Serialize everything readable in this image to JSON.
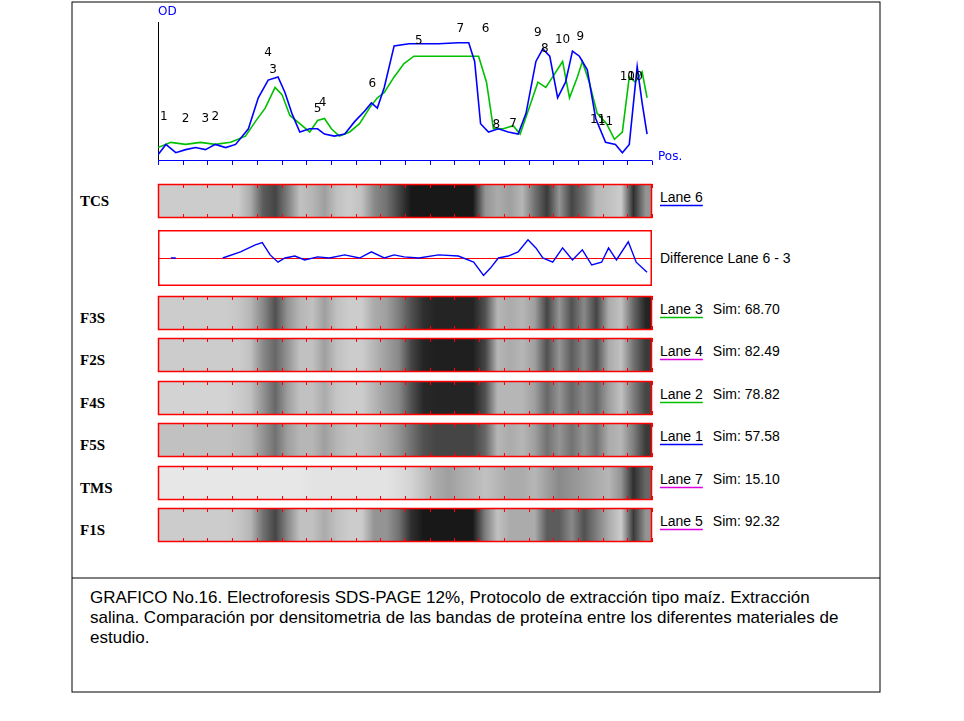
{
  "chart_data": [
    {
      "type": "line",
      "y_label": "OD",
      "x_label": "Pos.",
      "xlim": [
        0,
        100
      ],
      "ylim": [
        0,
        100
      ],
      "xticks": [
        0,
        5,
        10,
        15,
        20,
        25,
        30,
        35,
        40,
        45,
        50,
        55,
        60,
        65,
        70,
        75,
        80,
        85,
        90,
        95,
        100
      ],
      "tick_labels": false,
      "grid": false,
      "series": [
        {
          "name": "Lane 6",
          "color": "#0000ff",
          "x": [
            0,
            1.6,
            3.6,
            5.6,
            7.6,
            9.6,
            11.6,
            13.7,
            15.7,
            18.3,
            20.3,
            22.3,
            24.3,
            25.7,
            27.1,
            28.7,
            30.7,
            32.3,
            33.7,
            35.7,
            37.8,
            39.8,
            41.8,
            43.2,
            44.4,
            45.8,
            47.8,
            50.8,
            56.8,
            60.8,
            62.9,
            64.1,
            65.3,
            66.9,
            68.9,
            70.9,
            72.9,
            74.5,
            76.5,
            77.9,
            79.3,
            80.9,
            82.5,
            83.9,
            85.3,
            86.9,
            88.6,
            90.6,
            92.6,
            94.0,
            95.4,
            97.0,
            98.0,
            99.0
          ],
          "values": [
            3.8,
            11.3,
            5.3,
            7.5,
            9.0,
            7.5,
            11.3,
            9.0,
            11.3,
            22.6,
            45.1,
            57.9,
            60.2,
            48.9,
            33.8,
            20.3,
            22.6,
            22.6,
            18.8,
            17.3,
            18.8,
            27.8,
            35.3,
            41.4,
            37.6,
            52.6,
            82.7,
            84.2,
            84.2,
            85.0,
            85.0,
            71.4,
            26.3,
            20.3,
            22.6,
            20.3,
            18.8,
            33.8,
            71.4,
            80.5,
            75.2,
            45.1,
            56.4,
            78.9,
            75.2,
            65.4,
            30.1,
            12.8,
            11.3,
            5.3,
            11.3,
            67.7,
            41.4,
            18.8
          ],
          "peak_labels": [
            {
              "x": 1.2,
              "y": 26.3,
              "text": "1"
            },
            {
              "x": 5.6,
              "y": 24.8,
              "text": "2"
            },
            {
              "x": 9.6,
              "y": 24.8,
              "text": "3"
            },
            {
              "x": 22.3,
              "y": 72.9,
              "text": "4"
            },
            {
              "x": 32.3,
              "y": 32.3,
              "text": "5"
            },
            {
              "x": 43.4,
              "y": 50.4,
              "text": "6"
            },
            {
              "x": 52.8,
              "y": 81.2,
              "text": "5"
            },
            {
              "x": 61.2,
              "y": 90.2,
              "text": "7"
            },
            {
              "x": 76.9,
              "y": 87.2,
              "text": "9"
            },
            {
              "x": 81.9,
              "y": 82.0,
              "text": "10"
            },
            {
              "x": 90.6,
              "y": 22.6,
              "text": "11"
            },
            {
              "x": 95.0,
              "y": 54.9,
              "text": "10"
            }
          ]
        },
        {
          "name": "Lane 3",
          "color": "#00c000",
          "x": [
            0,
            2.6,
            5.6,
            8.6,
            11.6,
            14.7,
            17.7,
            19.7,
            21.7,
            23.7,
            25.1,
            26.7,
            28.7,
            30.7,
            32.3,
            33.7,
            35.1,
            36.7,
            38.8,
            40.8,
            42.8,
            44.4,
            45.8,
            47.8,
            49.8,
            51.8,
            56.8,
            61.8,
            64.9,
            66.5,
            67.9,
            69.9,
            71.9,
            73.3,
            74.9,
            76.9,
            78.5,
            79.9,
            81.9,
            83.3,
            84.9,
            85.9,
            87.3,
            88.9,
            90.8,
            92.4,
            94.0,
            95.4,
            96.6,
            98.0,
            99.0
          ],
          "values": [
            9.0,
            12.8,
            11.3,
            12.8,
            11.3,
            12.8,
            17.3,
            27.8,
            37.6,
            52.6,
            47.4,
            32.3,
            26.3,
            20.3,
            28.6,
            30.1,
            22.6,
            17.3,
            20.3,
            26.3,
            37.6,
            45.1,
            48.9,
            60.2,
            69.9,
            75.2,
            75.2,
            75.2,
            75.2,
            56.4,
            22.6,
            22.6,
            24.8,
            18.8,
            35.3,
            56.4,
            52.6,
            60.2,
            71.4,
            45.1,
            60.2,
            71.4,
            56.4,
            33.8,
            26.3,
            15.0,
            20.3,
            60.2,
            56.4,
            63.9,
            45.1
          ],
          "peak_labels": [
            {
              "x": 11.6,
              "y": 26.3,
              "text": "2"
            },
            {
              "x": 23.3,
              "y": 60.2,
              "text": "3"
            },
            {
              "x": 33.3,
              "y": 36.1,
              "text": "4"
            },
            {
              "x": 66.3,
              "y": 90.2,
              "text": "6"
            },
            {
              "x": 68.5,
              "y": 20.3,
              "text": "8"
            },
            {
              "x": 71.9,
              "y": 21.1,
              "text": "7"
            },
            {
              "x": 78.3,
              "y": 75.2,
              "text": "8"
            },
            {
              "x": 85.5,
              "y": 84.2,
              "text": "9"
            },
            {
              "x": 89.0,
              "y": 24.1,
              "text": "11"
            },
            {
              "x": 96.6,
              "y": 54.9,
              "text": "10"
            }
          ]
        }
      ]
    },
    {
      "type": "line",
      "title": "Difference Lane 6 - 3",
      "xlim": [
        0,
        100
      ],
      "ylim": [
        -10,
        10
      ],
      "tick_labels": false,
      "grid": false,
      "reference_line": 0,
      "series": [
        {
          "color": "#0000ff",
          "x": [
            2.6,
            3.6,
            5.0,
            13.1,
            16.7,
            19.7,
            21.1,
            22.7,
            24.3,
            25.7,
            27.7,
            29.7,
            32.3,
            34.7,
            37.8,
            40.8,
            43.2,
            45.8,
            47.8,
            49.8,
            52.8,
            56.8,
            60.8,
            63.9,
            65.9,
            67.3,
            68.9,
            70.9,
            72.9,
            74.9,
            76.5,
            77.9,
            79.9,
            81.9,
            83.9,
            85.9,
            87.8,
            89.8,
            91.2,
            92.8,
            95.2,
            96.8,
            99.0
          ],
          "values": [
            0,
            0,
            null,
            0,
            2.2,
            4.7,
            5.5,
            1.1,
            -1.5,
            0,
            0.7,
            -0.7,
            0.4,
            0,
            1.1,
            0,
            2.2,
            0,
            1.1,
            0.4,
            0,
            1.1,
            0.7,
            -1.5,
            -6.2,
            -3.6,
            0,
            0.7,
            2.2,
            6.5,
            3.6,
            0,
            -1.5,
            3.6,
            -0.7,
            2.9,
            -2.5,
            -1.5,
            3.6,
            -0.7,
            5.8,
            -1.5,
            -5.1
          ]
        }
      ]
    }
  ],
  "lanes": {
    "sim_prefix": "Sim:",
    "positions": [
      1.25,
      3.75,
      6.25,
      8.75,
      11.25,
      13.75,
      16.25,
      18.75,
      21.25,
      23.75,
      26.25,
      28.75,
      31.25,
      33.75,
      36.25,
      38.75,
      41.25,
      43.75,
      46.25,
      48.75,
      51.25,
      53.75,
      56.25,
      58.75,
      61.25,
      63.75,
      66.25,
      68.75,
      71.25,
      73.75,
      76.25,
      78.75,
      81.25,
      83.75,
      86.25,
      88.75,
      91.25,
      93.75,
      96.25,
      98.75
    ],
    "items": [
      {
        "sample": "TCS",
        "lane": "Lane 6",
        "color": "#0000ff",
        "darkness": [
          15,
          15,
          15,
          15,
          15,
          15,
          15,
          30,
          65,
          75,
          50,
          20,
          25,
          35,
          20,
          15,
          20,
          45,
          55,
          75,
          95,
          95,
          95,
          95,
          95,
          95,
          40,
          30,
          35,
          25,
          55,
          80,
          40,
          75,
          55,
          25,
          20,
          15,
          85,
          40
        ]
      },
      {
        "sample": "F3S",
        "lane": "Lane 3",
        "color": "#00c000",
        "sim": 68.7,
        "darkness": [
          15,
          15,
          15,
          15,
          15,
          15,
          18,
          25,
          45,
          70,
          40,
          25,
          20,
          35,
          20,
          15,
          15,
          30,
          35,
          50,
          70,
          85,
          90,
          90,
          90,
          90,
          70,
          25,
          30,
          25,
          35,
          75,
          40,
          70,
          45,
          75,
          30,
          20,
          60,
          90
        ]
      },
      {
        "sample": "F2S",
        "lane": "Lane 4",
        "color": "#e000e0",
        "sim": 82.49,
        "darkness": [
          15,
          15,
          15,
          15,
          15,
          15,
          15,
          20,
          45,
          60,
          40,
          20,
          20,
          35,
          20,
          15,
          15,
          25,
          35,
          45,
          75,
          90,
          92,
          92,
          92,
          92,
          75,
          25,
          30,
          25,
          35,
          70,
          40,
          65,
          45,
          70,
          30,
          20,
          55,
          80
        ]
      },
      {
        "sample": "F4S",
        "lane": "Lane 2",
        "color": "#00c000",
        "sim": 78.82,
        "darkness": [
          12,
          12,
          12,
          12,
          12,
          12,
          15,
          20,
          40,
          60,
          35,
          20,
          20,
          30,
          18,
          15,
          15,
          25,
          35,
          45,
          70,
          88,
          90,
          90,
          90,
          90,
          70,
          25,
          25,
          25,
          35,
          60,
          40,
          60,
          45,
          60,
          35,
          20,
          50,
          75
        ]
      },
      {
        "sample": "F5S",
        "lane": "Lane 1",
        "color": "#0000ff",
        "sim": 57.58,
        "darkness": [
          20,
          20,
          20,
          20,
          20,
          20,
          22,
          25,
          40,
          55,
          35,
          25,
          25,
          35,
          25,
          20,
          20,
          25,
          30,
          40,
          55,
          70,
          75,
          75,
          75,
          75,
          60,
          25,
          30,
          25,
          35,
          55,
          40,
          55,
          40,
          55,
          30,
          25,
          50,
          80
        ]
      },
      {
        "sample": "TMS",
        "lane": "Lane 7",
        "color": "#e000e0",
        "sim": 15.1,
        "darkness": [
          3,
          3,
          3,
          3,
          3,
          3,
          3,
          3,
          3,
          3,
          3,
          3,
          5,
          5,
          5,
          5,
          5,
          5,
          5,
          8,
          12,
          20,
          30,
          35,
          30,
          25,
          20,
          25,
          30,
          30,
          25,
          35,
          45,
          40,
          35,
          30,
          25,
          40,
          85,
          60
        ]
      },
      {
        "sample": "F1S",
        "lane": "Lane 5",
        "color": "#e000e0",
        "sim": 92.32,
        "darkness": [
          15,
          15,
          15,
          15,
          15,
          15,
          18,
          25,
          55,
          75,
          45,
          20,
          20,
          30,
          20,
          15,
          15,
          40,
          40,
          55,
          85,
          95,
          95,
          95,
          95,
          95,
          50,
          20,
          30,
          30,
          30,
          65,
          65,
          45,
          70,
          50,
          30,
          15,
          80,
          40
        ]
      }
    ]
  },
  "caption": "GRAFICO No.16. Electroforesis SDS-PAGE 12%, Protocolo de extracción tipo maíz. Extracción salina. Comparación por densitometria de las bandas de proteína entre los diferentes materiales de estudio."
}
